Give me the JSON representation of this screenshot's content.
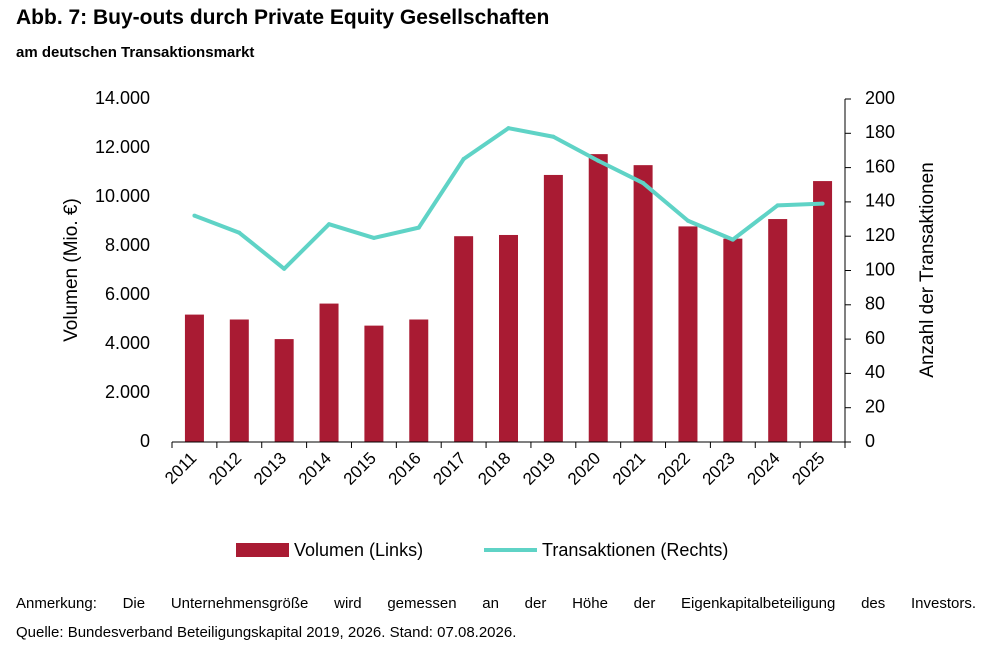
{
  "header": {
    "title": "Abb. 7: Buy-outs durch Private Equity Gesellschaften",
    "subtitle": "am deutschen Transaktionsmarkt"
  },
  "footer": {
    "note": "Anmerkung: Die Unternehmensgröße wird gemessen an der Höhe der Eigenkapitalbeteiligung des Investors.",
    "source": "Quelle: Bundesverband Beteiligungskapital 2019, 2026. Stand: 07.08.2026."
  },
  "colors": {
    "bar": "#a91b33",
    "line": "#5fd3c6",
    "axis": "#000000"
  },
  "chart_data": {
    "type": "bar",
    "categories": [
      "2011",
      "2012",
      "2013",
      "2014",
      "2015",
      "2016",
      "2017",
      "2018",
      "2019",
      "2020",
      "2021",
      "2022",
      "2023",
      "2024",
      "2025"
    ],
    "series": [
      {
        "name": "Volumen (Links)",
        "type": "bar",
        "axis": "left",
        "values": [
          5200,
          5000,
          4200,
          5650,
          4750,
          5000,
          8400,
          8450,
          10900,
          11750,
          11300,
          8800,
          8300,
          9100,
          10650
        ]
      },
      {
        "name": "Transaktionen (Rechts)",
        "type": "line",
        "axis": "right",
        "values": [
          132,
          122,
          101,
          127,
          119,
          125,
          165,
          183,
          178,
          164,
          151,
          129,
          118,
          138,
          139
        ]
      }
    ],
    "ylabel_left": "Volumen (Mio. €)",
    "ylabel_right": "Anzahl der Transaktionen",
    "ylim_left": [
      0,
      14000
    ],
    "ylim_right": [
      0,
      200
    ],
    "yticks_left": [
      "0",
      "2.000",
      "4.000",
      "6.000",
      "8.000",
      "10.000",
      "12.000",
      "14.000"
    ],
    "yticks_right": [
      "0",
      "20",
      "40",
      "60",
      "80",
      "100",
      "120",
      "140",
      "160",
      "180",
      "200"
    ],
    "grid": false,
    "legend": "bottom"
  }
}
